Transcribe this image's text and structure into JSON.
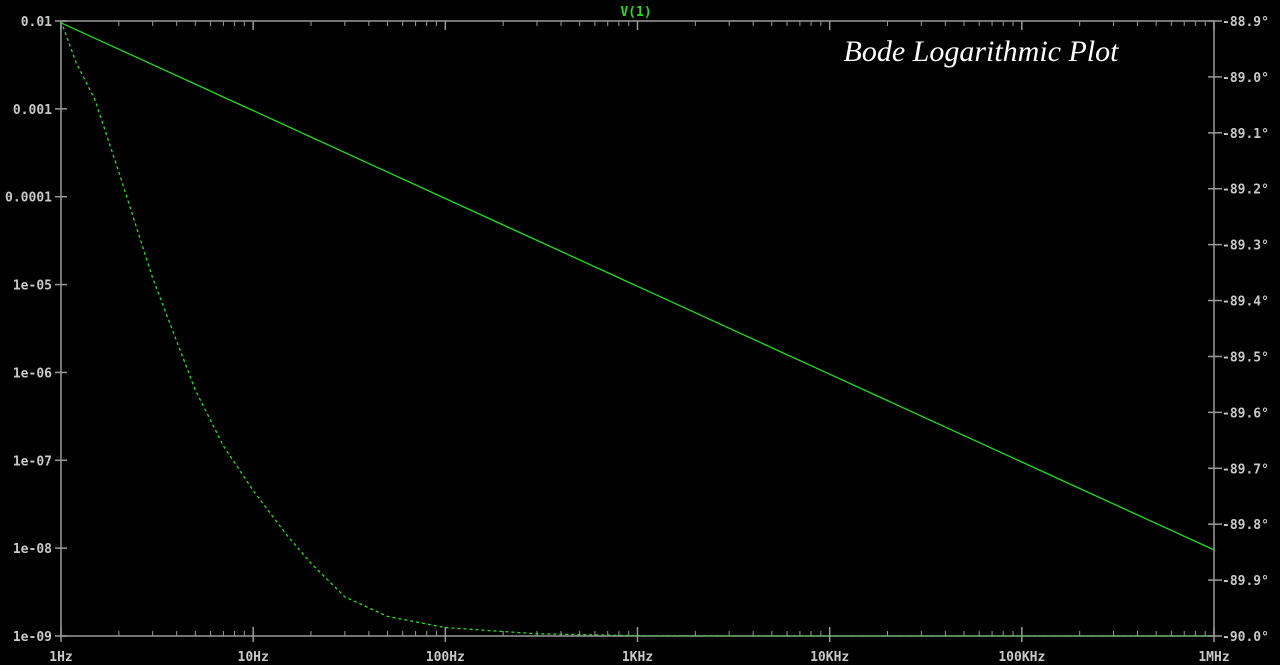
{
  "chart_data": {
    "type": "line",
    "trace_title": "V(1)",
    "annotation": "Bode Logarithmic Plot",
    "x_scale": "log",
    "x_range": [
      1,
      1000000
    ],
    "x_ticks": [
      {
        "value": 1,
        "label": "1Hz"
      },
      {
        "value": 10,
        "label": "10Hz"
      },
      {
        "value": 100,
        "label": "100Hz"
      },
      {
        "value": 1000,
        "label": "1KHz"
      },
      {
        "value": 10000,
        "label": "10KHz"
      },
      {
        "value": 100000,
        "label": "100KHz"
      },
      {
        "value": 1000000,
        "label": "1MHz"
      }
    ],
    "y_left": {
      "scale": "log",
      "range": [
        1e-09,
        0.01
      ],
      "ticks": [
        {
          "value": 0.01,
          "label": "0.01"
        },
        {
          "value": 0.001,
          "label": "0.001"
        },
        {
          "value": 0.0001,
          "label": "0.0001"
        },
        {
          "value": 1e-05,
          "label": "1e-05"
        },
        {
          "value": 1e-06,
          "label": "1e-06"
        },
        {
          "value": 1e-07,
          "label": "1e-07"
        },
        {
          "value": 1e-08,
          "label": "1e-08"
        },
        {
          "value": 1e-09,
          "label": "1e-09"
        }
      ]
    },
    "y_right": {
      "scale": "linear",
      "range": [
        -90.0,
        -88.9
      ],
      "ticks": [
        {
          "value": -88.9,
          "label": "-88.9°"
        },
        {
          "value": -89.0,
          "label": "-89.0°"
        },
        {
          "value": -89.1,
          "label": "-89.1°"
        },
        {
          "value": -89.2,
          "label": "-89.2°"
        },
        {
          "value": -89.3,
          "label": "-89.3°"
        },
        {
          "value": -89.4,
          "label": "-89.4°"
        },
        {
          "value": -89.5,
          "label": "-89.5°"
        },
        {
          "value": -89.6,
          "label": "-89.6°"
        },
        {
          "value": -89.7,
          "label": "-89.7°"
        },
        {
          "value": -89.8,
          "label": "-89.8°"
        },
        {
          "value": -89.9,
          "label": "-89.9°"
        },
        {
          "value": -90.0,
          "label": "-90.0°"
        }
      ]
    },
    "series": [
      {
        "axis": "left",
        "style": "solid",
        "color": "#22dd22",
        "x": [
          1,
          10,
          100,
          1000,
          10000,
          100000,
          1000000
        ],
        "y": [
          0.00955,
          0.000955,
          9.55e-05,
          9.55e-06,
          9.55e-07,
          9.55e-08,
          9.55e-09
        ]
      },
      {
        "axis": "right",
        "style": "dashed",
        "color": "#22dd22",
        "x": [
          1,
          1.2,
          1.5,
          2,
          3,
          5,
          7,
          10,
          15,
          20,
          30,
          50,
          100,
          300,
          1000,
          10000,
          100000,
          1000000
        ],
        "y": [
          -88.9,
          -88.975,
          -89.04,
          -89.17,
          -89.36,
          -89.56,
          -89.66,
          -89.74,
          -89.82,
          -89.87,
          -89.93,
          -89.965,
          -89.985,
          -89.996,
          -89.9995,
          -90.0,
          -90.0,
          -90.0
        ]
      }
    ],
    "colors": {
      "background": "#000000",
      "axis": "#9a9a9a",
      "tick_label": "#c9c9c9",
      "trace": "#22dd22",
      "title": "#22dd22",
      "annotation": "#ffffff"
    }
  }
}
